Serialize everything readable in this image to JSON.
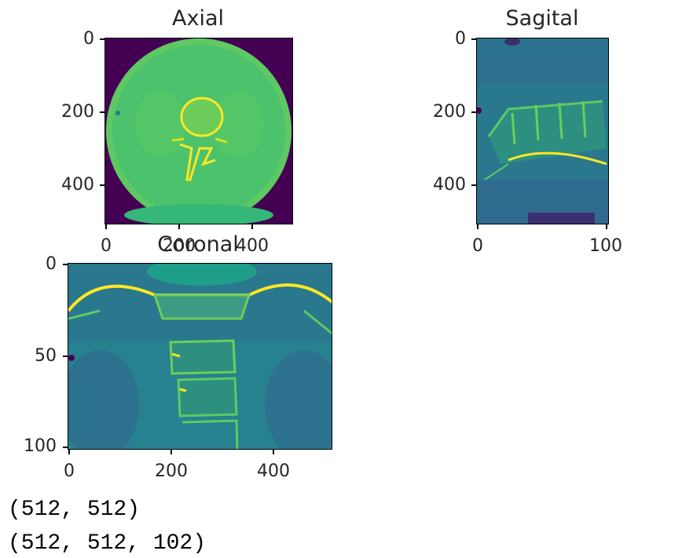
{
  "plots": {
    "axial": {
      "title": "Axial",
      "y_ticks": [
        "0",
        "200",
        "400"
      ],
      "x_ticks": [
        "0",
        "200",
        "400"
      ]
    },
    "sagital": {
      "title": "Sagital",
      "y_ticks": [
        "0",
        "200",
        "400"
      ],
      "x_ticks": [
        "0",
        "100"
      ]
    },
    "coronal": {
      "title": "Coronal",
      "y_ticks": [
        "0",
        "50",
        "100"
      ],
      "x_ticks": [
        "0",
        "200",
        "400"
      ]
    }
  },
  "output": {
    "line1": "(512, 512)",
    "line2": "(512, 512, 102)"
  },
  "colors": {
    "viridis_dark": "#440154",
    "viridis_teal": "#2a788e",
    "viridis_green": "#5ec962",
    "viridis_yellow": "#fde725"
  }
}
